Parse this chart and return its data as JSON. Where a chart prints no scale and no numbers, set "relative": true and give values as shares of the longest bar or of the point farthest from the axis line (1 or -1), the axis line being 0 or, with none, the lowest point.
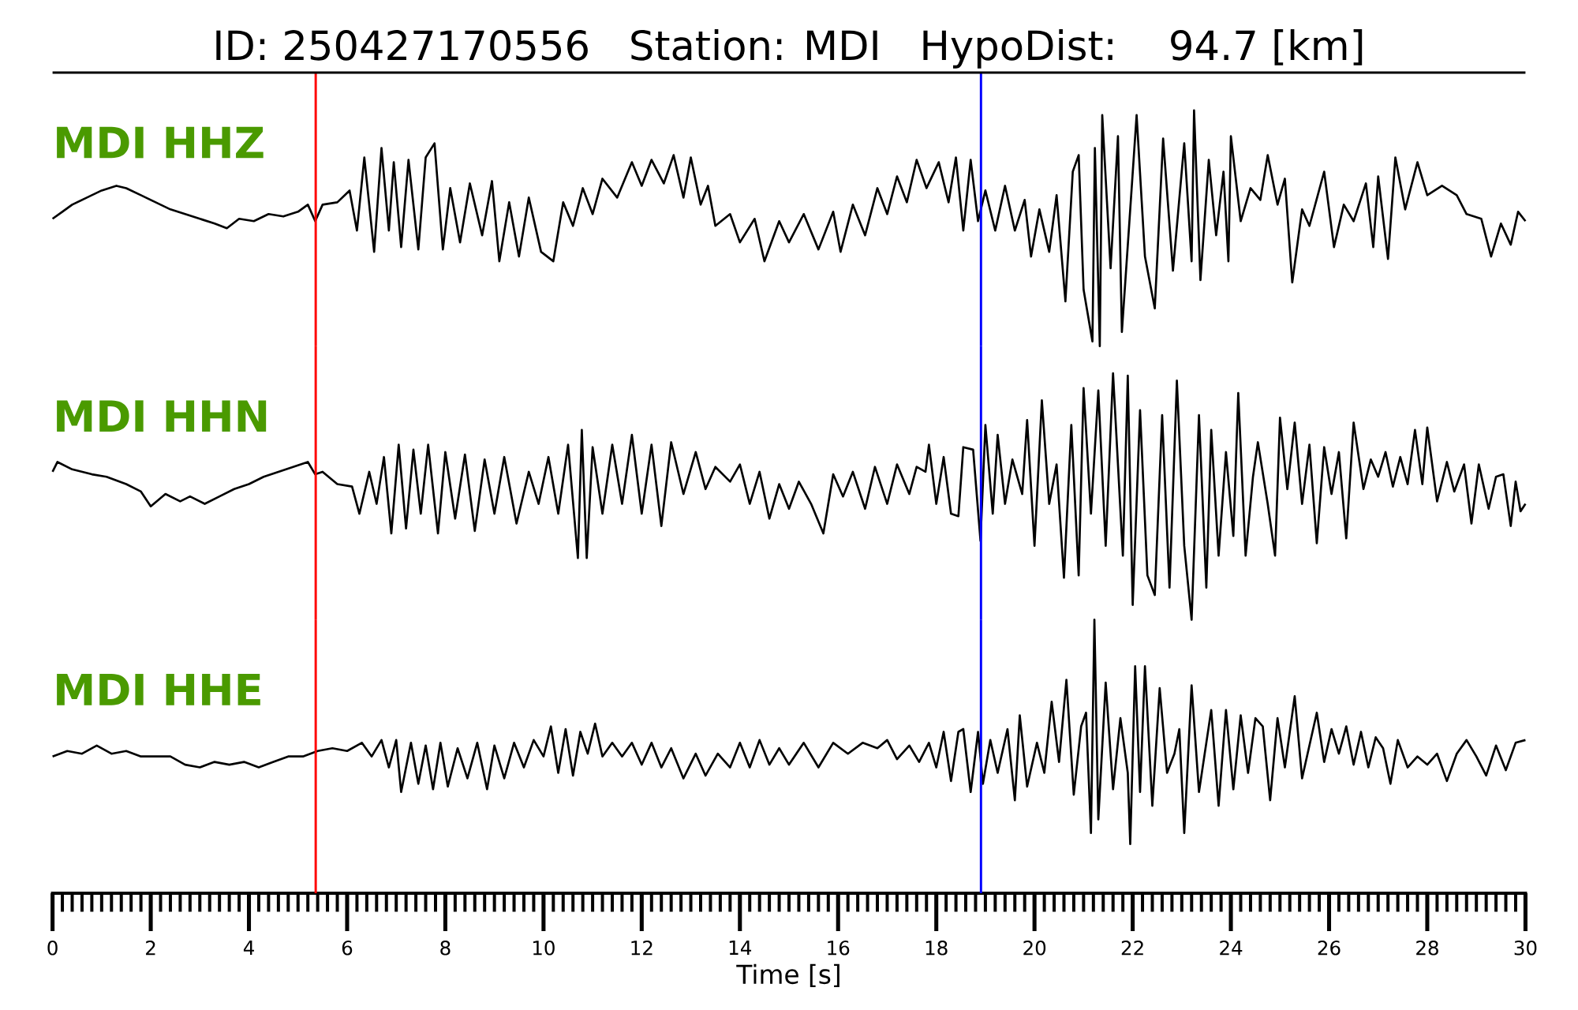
{
  "chart_data": [
    {
      "type": "line",
      "title": "ID: 250427170556   Station: MDI   HypoDist:    94.7 [km]",
      "relative": true,
      "xlim": [
        0,
        30
      ],
      "tick_labels": false,
      "ref_lines": [
        {
          "axis": "x",
          "value": 5.36,
          "color": "#ff0000"
        },
        {
          "axis": "x",
          "value": 18.91,
          "color": "#0000ff"
        }
      ],
      "x": [
        0,
        0.2,
        0.4,
        0.7,
        1,
        1.3,
        1.5,
        1.8,
        2.1,
        2.4,
        2.7,
        3,
        3.3,
        3.55,
        3.8,
        4.1,
        4.4,
        4.7,
        5,
        5.2,
        5.35,
        5.5,
        5.8,
        6.05,
        6.2,
        6.35,
        6.55,
        6.7,
        6.85,
        6.95,
        7.1,
        7.25,
        7.45,
        7.6,
        7.78,
        7.95,
        8.1,
        8.3,
        8.5,
        8.75,
        8.95,
        9.1,
        9.3,
        9.5,
        9.7,
        9.95,
        10.2,
        10.4,
        10.6,
        10.8,
        11,
        11.2,
        11.5,
        11.8,
        12,
        12.2,
        12.45,
        12.65,
        12.85,
        13,
        13.2,
        13.35,
        13.5,
        13.8,
        14,
        14.3,
        14.5,
        14.8,
        15,
        15.3,
        15.6,
        15.9,
        16.05,
        16.3,
        16.55,
        16.8,
        17,
        17.2,
        17.4,
        17.6,
        17.8,
        18.05,
        18.25,
        18.4,
        18.55,
        18.7,
        18.85,
        19,
        19.2,
        19.4,
        19.6,
        19.8,
        19.93,
        20.1,
        20.3,
        20.45,
        20.63,
        20.78,
        20.9,
        21,
        21.18,
        21.23,
        21.33,
        21.38,
        21.55,
        21.7,
        21.78,
        21.95,
        22.08,
        22.25,
        22.45,
        22.62,
        22.82,
        23.05,
        23.2,
        23.25,
        23.38,
        23.55,
        23.7,
        23.85,
        23.95,
        24,
        24.2,
        24.4,
        24.6,
        24.75,
        24.95,
        25.1,
        25.25,
        25.45,
        25.6,
        25.9,
        26.1,
        26.3,
        26.5,
        26.75,
        26.9,
        27,
        27.2,
        27.35,
        27.55,
        27.8,
        28,
        28.3,
        28.6,
        28.8,
        29.1,
        29.3,
        29.5,
        29.7,
        29.85,
        30
      ],
      "series": [
        {
          "name": "MDI HHZ",
          "color": "#000000",
          "values": [
            0.54,
            0.57,
            0.6,
            0.63,
            0.66,
            0.68,
            0.67,
            0.64,
            0.61,
            0.58,
            0.56,
            0.54,
            0.52,
            0.5,
            0.54,
            0.53,
            0.56,
            0.55,
            0.57,
            0.6,
            0.53,
            0.6,
            0.61,
            0.66,
            0.49,
            0.8,
            0.4,
            0.84,
            0.49,
            0.78,
            0.42,
            0.79,
            0.41,
            0.8,
            0.86,
            0.41,
            0.67,
            0.44,
            0.69,
            0.47,
            0.7,
            0.36,
            0.61,
            0.38,
            0.63,
            0.4,
            0.36,
            0.61,
            0.51,
            0.67,
            0.56,
            0.71,
            0.63,
            0.78,
            0.68,
            0.79,
            0.69,
            0.81,
            0.63,
            0.8,
            0.6,
            0.68,
            0.51,
            0.56,
            0.44,
            0.54,
            0.36,
            0.53,
            0.44,
            0.56,
            0.41,
            0.57,
            0.4,
            0.6,
            0.47,
            0.67,
            0.56,
            0.72,
            0.61,
            0.79,
            0.67,
            0.78,
            0.61,
            0.8,
            0.49,
            0.79,
            0.53,
            0.66,
            0.49,
            0.68,
            0.49,
            0.62,
            0.38,
            0.58,
            0.4,
            0.64,
            0.19,
            0.74,
            0.81,
            0.24,
            0.02,
            0.84,
            0,
            0.98,
            0.33,
            0.89,
            0.06,
            0.58,
            0.98,
            0.38,
            0.16,
            0.88,
            0.32,
            0.86,
            0.36,
            1,
            0.28,
            0.79,
            0.47,
            0.74,
            0.36,
            0.89,
            0.53,
            0.67,
            0.62,
            0.81,
            0.6,
            0.71,
            0.27,
            0.58,
            0.51,
            0.74,
            0.42,
            0.6,
            0.53,
            0.69,
            0.42,
            0.72,
            0.37,
            0.8,
            0.58,
            0.78,
            0.64,
            0.68,
            0.64,
            0.56,
            0.54,
            0.38,
            0.52,
            0.43,
            0.57,
            0.53
          ]
        }
      ]
    },
    {
      "type": "line",
      "relative": true,
      "xlim": [
        0,
        30
      ],
      "tick_labels": false,
      "ref_lines": [
        {
          "axis": "x",
          "value": 5.36,
          "color": "#ff0000"
        },
        {
          "axis": "x",
          "value": 18.91,
          "color": "#0000ff"
        }
      ],
      "x": [
        0,
        0.1,
        0.4,
        0.8,
        1.1,
        1.5,
        1.8,
        2,
        2.3,
        2.6,
        2.8,
        3.1,
        3.4,
        3.7,
        4,
        4.3,
        4.6,
        4.9,
        5.2,
        5.35,
        5.5,
        5.8,
        6.1,
        6.25,
        6.45,
        6.6,
        6.75,
        6.9,
        7.05,
        7.2,
        7.35,
        7.5,
        7.65,
        7.85,
        8,
        8.2,
        8.4,
        8.6,
        8.8,
        9,
        9.2,
        9.45,
        9.7,
        9.9,
        10.1,
        10.3,
        10.5,
        10.7,
        10.78,
        10.88,
        11,
        11.2,
        11.4,
        11.6,
        11.8,
        12,
        12.2,
        12.4,
        12.6,
        12.85,
        13.1,
        13.3,
        13.5,
        13.8,
        14,
        14.2,
        14.4,
        14.6,
        14.8,
        15,
        15.2,
        15.45,
        15.7,
        15.9,
        16.1,
        16.3,
        16.55,
        16.75,
        17,
        17.2,
        17.45,
        17.6,
        17.78,
        17.85,
        18,
        18.15,
        18.3,
        18.45,
        18.55,
        18.75,
        18.9,
        19,
        19.15,
        19.25,
        19.4,
        19.55,
        19.75,
        19.85,
        20,
        20.15,
        20.3,
        20.45,
        20.6,
        20.75,
        20.9,
        21,
        21.15,
        21.3,
        21.45,
        21.6,
        21.8,
        21.9,
        22,
        22.15,
        22.3,
        22.45,
        22.6,
        22.75,
        22.9,
        23.05,
        23.2,
        23.35,
        23.5,
        23.6,
        23.75,
        23.9,
        24.05,
        24.15,
        24.3,
        24.45,
        24.55,
        24.75,
        24.9,
        25,
        25.15,
        25.3,
        25.45,
        25.6,
        25.75,
        25.9,
        26.05,
        26.2,
        26.35,
        26.5,
        26.7,
        26.85,
        27,
        27.15,
        27.3,
        27.45,
        27.6,
        27.75,
        27.9,
        28,
        28.2,
        28.4,
        28.55,
        28.75,
        28.9,
        29.05,
        29.25,
        29.4,
        29.55,
        29.7,
        29.8,
        29.9,
        30
      ],
      "series": [
        {
          "name": "MDI HHN",
          "color": "#000000",
          "values": [
            0.6,
            0.64,
            0.61,
            0.59,
            0.58,
            0.55,
            0.52,
            0.46,
            0.51,
            0.48,
            0.5,
            0.47,
            0.5,
            0.53,
            0.55,
            0.58,
            0.6,
            0.62,
            0.64,
            0.59,
            0.6,
            0.55,
            0.54,
            0.43,
            0.6,
            0.47,
            0.66,
            0.35,
            0.71,
            0.37,
            0.69,
            0.43,
            0.71,
            0.35,
            0.68,
            0.41,
            0.67,
            0.36,
            0.65,
            0.43,
            0.66,
            0.39,
            0.6,
            0.47,
            0.66,
            0.43,
            0.71,
            0.25,
            0.77,
            0.25,
            0.7,
            0.43,
            0.71,
            0.47,
            0.75,
            0.43,
            0.71,
            0.38,
            0.72,
            0.51,
            0.68,
            0.53,
            0.62,
            0.56,
            0.63,
            0.47,
            0.6,
            0.41,
            0.55,
            0.45,
            0.56,
            0.47,
            0.35,
            0.59,
            0.5,
            0.6,
            0.45,
            0.62,
            0.47,
            0.63,
            0.51,
            0.62,
            0.6,
            0.71,
            0.47,
            0.66,
            0.43,
            0.42,
            0.7,
            0.69,
            0.32,
            0.79,
            0.43,
            0.75,
            0.47,
            0.65,
            0.51,
            0.81,
            0.3,
            0.89,
            0.47,
            0.63,
            0.17,
            0.79,
            0.18,
            0.94,
            0.43,
            0.93,
            0.3,
            1,
            0.26,
            0.99,
            0.06,
            0.85,
            0.18,
            0.1,
            0.83,
            0.13,
            0.97,
            0.3,
            0,
            0.83,
            0.13,
            0.77,
            0.26,
            0.68,
            0.34,
            0.92,
            0.26,
            0.58,
            0.72,
            0.47,
            0.26,
            0.82,
            0.53,
            0.8,
            0.47,
            0.71,
            0.31,
            0.7,
            0.51,
            0.68,
            0.33,
            0.8,
            0.53,
            0.65,
            0.58,
            0.68,
            0.54,
            0.66,
            0.55,
            0.77,
            0.55,
            0.78,
            0.48,
            0.64,
            0.52,
            0.63,
            0.39,
            0.63,
            0.45,
            0.58,
            0.59,
            0.38,
            0.56,
            0.44,
            0.47
          ]
        }
      ]
    },
    {
      "type": "line",
      "relative": true,
      "xlim": [
        0,
        30
      ],
      "tick_labels": "x",
      "xlabel": "Time [s]",
      "ref_lines": [
        {
          "axis": "x",
          "value": 5.36,
          "color": "#ff0000"
        },
        {
          "axis": "x",
          "value": 18.91,
          "color": "#0000ff"
        }
      ],
      "xticks": [
        0,
        {
          "value": 0.2,
          "label": null
        },
        {
          "value": 0.4,
          "label": null
        },
        {
          "value": 0.6,
          "label": null
        },
        {
          "value": 0.8,
          "label": null
        },
        {
          "value": 1,
          "label": null
        },
        {
          "value": 1.2,
          "label": null
        },
        {
          "value": 1.4,
          "label": null
        },
        {
          "value": 1.6,
          "label": null
        },
        {
          "value": 1.8,
          "label": null
        },
        2,
        {
          "value": 2.2,
          "label": null
        },
        {
          "value": 2.4,
          "label": null
        },
        {
          "value": 2.6,
          "label": null
        },
        {
          "value": 2.8,
          "label": null
        },
        {
          "value": 3,
          "label": null
        },
        {
          "value": 3.2,
          "label": null
        },
        {
          "value": 3.4,
          "label": null
        },
        {
          "value": 3.6,
          "label": null
        },
        {
          "value": 3.8,
          "label": null
        },
        4,
        {
          "value": 4.2,
          "label": null
        },
        {
          "value": 4.4,
          "label": null
        },
        {
          "value": 4.6,
          "label": null
        },
        {
          "value": 4.8,
          "label": null
        },
        {
          "value": 5,
          "label": null
        },
        {
          "value": 5.2,
          "label": null
        },
        {
          "value": 5.4,
          "label": null
        },
        {
          "value": 5.6,
          "label": null
        },
        {
          "value": 5.8,
          "label": null
        },
        6,
        {
          "value": 6.2,
          "label": null
        },
        {
          "value": 6.4,
          "label": null
        },
        {
          "value": 6.6,
          "label": null
        },
        {
          "value": 6.8,
          "label": null
        },
        {
          "value": 7,
          "label": null
        },
        {
          "value": 7.2,
          "label": null
        },
        {
          "value": 7.4,
          "label": null
        },
        {
          "value": 7.6,
          "label": null
        },
        {
          "value": 7.8,
          "label": null
        },
        8,
        {
          "value": 8.2,
          "label": null
        },
        {
          "value": 8.4,
          "label": null
        },
        {
          "value": 8.6,
          "label": null
        },
        {
          "value": 8.8,
          "label": null
        },
        {
          "value": 9,
          "label": null
        },
        {
          "value": 9.2,
          "label": null
        },
        {
          "value": 9.4,
          "label": null
        },
        {
          "value": 9.6,
          "label": null
        },
        {
          "value": 9.8,
          "label": null
        },
        10,
        {
          "value": 10.2,
          "label": null
        },
        {
          "value": 10.4,
          "label": null
        },
        {
          "value": 10.6,
          "label": null
        },
        {
          "value": 10.8,
          "label": null
        },
        {
          "value": 11,
          "label": null
        },
        {
          "value": 11.2,
          "label": null
        },
        {
          "value": 11.4,
          "label": null
        },
        {
          "value": 11.6,
          "label": null
        },
        {
          "value": 11.8,
          "label": null
        },
        12,
        {
          "value": 12.2,
          "label": null
        },
        {
          "value": 12.4,
          "label": null
        },
        {
          "value": 12.6,
          "label": null
        },
        {
          "value": 12.8,
          "label": null
        },
        {
          "value": 13,
          "label": null
        },
        {
          "value": 13.2,
          "label": null
        },
        {
          "value": 13.4,
          "label": null
        },
        {
          "value": 13.6,
          "label": null
        },
        {
          "value": 13.8,
          "label": null
        },
        14,
        {
          "value": 14.2,
          "label": null
        },
        {
          "value": 14.4,
          "label": null
        },
        {
          "value": 14.6,
          "label": null
        },
        {
          "value": 14.8,
          "label": null
        },
        {
          "value": 15,
          "label": null
        },
        {
          "value": 15.2,
          "label": null
        },
        {
          "value": 15.4,
          "label": null
        },
        {
          "value": 15.6,
          "label": null
        },
        {
          "value": 15.8,
          "label": null
        },
        16,
        {
          "value": 16.2,
          "label": null
        },
        {
          "value": 16.4,
          "label": null
        },
        {
          "value": 16.6,
          "label": null
        },
        {
          "value": 16.8,
          "label": null
        },
        {
          "value": 17,
          "label": null
        },
        {
          "value": 17.2,
          "label": null
        },
        {
          "value": 17.4,
          "label": null
        },
        {
          "value": 17.6,
          "label": null
        },
        {
          "value": 17.8,
          "label": null
        },
        18,
        {
          "value": 18.2,
          "label": null
        },
        {
          "value": 18.4,
          "label": null
        },
        {
          "value": 18.6,
          "label": null
        },
        {
          "value": 18.8,
          "label": null
        },
        {
          "value": 19,
          "label": null
        },
        {
          "value": 19.2,
          "label": null
        },
        {
          "value": 19.4,
          "label": null
        },
        {
          "value": 19.6,
          "label": null
        },
        {
          "value": 19.8,
          "label": null
        },
        20,
        {
          "value": 20.2,
          "label": null
        },
        {
          "value": 20.4,
          "label": null
        },
        {
          "value": 20.6,
          "label": null
        },
        {
          "value": 20.8,
          "label": null
        },
        {
          "value": 21,
          "label": null
        },
        {
          "value": 21.2,
          "label": null
        },
        {
          "value": 21.4,
          "label": null
        },
        {
          "value": 21.6,
          "label": null
        },
        {
          "value": 21.8,
          "label": null
        },
        22,
        {
          "value": 22.2,
          "label": null
        },
        {
          "value": 22.4,
          "label": null
        },
        {
          "value": 22.6,
          "label": null
        },
        {
          "value": 22.8,
          "label": null
        },
        {
          "value": 23,
          "label": null
        },
        {
          "value": 23.2,
          "label": null
        },
        {
          "value": 23.4,
          "label": null
        },
        {
          "value": 23.6,
          "label": null
        },
        {
          "value": 23.8,
          "label": null
        },
        24,
        {
          "value": 24.2,
          "label": null
        },
        {
          "value": 24.4,
          "label": null
        },
        {
          "value": 24.6,
          "label": null
        },
        {
          "value": 24.8,
          "label": null
        },
        {
          "value": 25,
          "label": null
        },
        {
          "value": 25.2,
          "label": null
        },
        {
          "value": 25.4,
          "label": null
        },
        {
          "value": 25.6,
          "label": null
        },
        {
          "value": 25.8,
          "label": null
        },
        26,
        {
          "value": 26.2,
          "label": null
        },
        {
          "value": 26.4,
          "label": null
        },
        {
          "value": 26.6,
          "label": null
        },
        {
          "value": 26.8,
          "label": null
        },
        {
          "value": 27,
          "label": null
        },
        {
          "value": 27.2,
          "label": null
        },
        {
          "value": 27.4,
          "label": null
        },
        {
          "value": 27.6,
          "label": null
        },
        {
          "value": 27.8,
          "label": null
        },
        28,
        {
          "value": 28.2,
          "label": null
        },
        {
          "value": 28.4,
          "label": null
        },
        {
          "value": 28.6,
          "label": null
        },
        {
          "value": 28.8,
          "label": null
        },
        {
          "value": 29,
          "label": null
        },
        {
          "value": 29.2,
          "label": null
        },
        {
          "value": 29.4,
          "label": null
        },
        {
          "value": 29.6,
          "label": null
        },
        {
          "value": 29.8,
          "label": null
        },
        30
      ],
      "x": [
        0,
        0.3,
        0.6,
        0.9,
        1.2,
        1.5,
        1.8,
        2.1,
        2.4,
        2.7,
        3,
        3.3,
        3.6,
        3.9,
        4.2,
        4.5,
        4.8,
        5.1,
        5.4,
        5.7,
        6,
        6.3,
        6.5,
        6.7,
        6.85,
        7,
        7.1,
        7.3,
        7.45,
        7.6,
        7.75,
        7.9,
        8.05,
        8.25,
        8.45,
        8.65,
        8.85,
        9,
        9.2,
        9.4,
        9.6,
        9.8,
        10,
        10.15,
        10.3,
        10.45,
        10.6,
        10.75,
        10.9,
        11.05,
        11.2,
        11.4,
        11.6,
        11.8,
        12,
        12.2,
        12.4,
        12.6,
        12.85,
        13.1,
        13.3,
        13.55,
        13.8,
        14,
        14.2,
        14.4,
        14.6,
        14.8,
        15,
        15.3,
        15.6,
        15.9,
        16.2,
        16.5,
        16.8,
        17,
        17.2,
        17.45,
        17.65,
        17.85,
        18,
        18.15,
        18.3,
        18.45,
        18.55,
        18.7,
        18.85,
        18.95,
        19.1,
        19.25,
        19.45,
        19.6,
        19.7,
        19.85,
        20.05,
        20.2,
        20.35,
        20.5,
        20.65,
        20.8,
        20.95,
        21.05,
        21.15,
        21.22,
        21.3,
        21.45,
        21.6,
        21.75,
        21.9,
        21.95,
        22.05,
        22.15,
        22.25,
        22.4,
        22.55,
        22.7,
        22.85,
        22.95,
        23.05,
        23.2,
        23.35,
        23.5,
        23.6,
        23.75,
        23.9,
        24.05,
        24.2,
        24.35,
        24.5,
        24.65,
        24.8,
        24.95,
        25.1,
        25.3,
        25.45,
        25.6,
        25.75,
        25.9,
        26.05,
        26.2,
        26.35,
        26.5,
        26.65,
        26.8,
        26.95,
        27.1,
        27.25,
        27.4,
        27.6,
        27.8,
        28,
        28.2,
        28.4,
        28.6,
        28.8,
        29,
        29.2,
        29.4,
        29.6,
        29.8,
        30
      ],
      "series": [
        {
          "name": "MDI HHE",
          "color": "#000000",
          "values": [
            0.5,
            0.52,
            0.51,
            0.54,
            0.51,
            0.52,
            0.5,
            0.5,
            0.5,
            0.47,
            0.46,
            0.48,
            0.47,
            0.48,
            0.46,
            0.48,
            0.5,
            0.5,
            0.52,
            0.53,
            0.52,
            0.55,
            0.5,
            0.56,
            0.46,
            0.56,
            0.37,
            0.55,
            0.4,
            0.54,
            0.38,
            0.55,
            0.39,
            0.53,
            0.42,
            0.55,
            0.38,
            0.54,
            0.42,
            0.55,
            0.46,
            0.56,
            0.5,
            0.61,
            0.44,
            0.6,
            0.43,
            0.59,
            0.51,
            0.62,
            0.5,
            0.55,
            0.5,
            0.55,
            0.47,
            0.55,
            0.46,
            0.53,
            0.42,
            0.51,
            0.43,
            0.51,
            0.46,
            0.55,
            0.46,
            0.56,
            0.47,
            0.53,
            0.47,
            0.55,
            0.46,
            0.55,
            0.51,
            0.55,
            0.53,
            0.56,
            0.49,
            0.54,
            0.48,
            0.55,
            0.46,
            0.59,
            0.41,
            0.59,
            0.6,
            0.37,
            0.59,
            0.4,
            0.56,
            0.44,
            0.6,
            0.34,
            0.65,
            0.39,
            0.55,
            0.44,
            0.7,
            0.48,
            0.78,
            0.36,
            0.61,
            0.66,
            0.22,
            1,
            0.27,
            0.77,
            0.38,
            0.64,
            0.44,
            0.18,
            0.83,
            0.37,
            0.83,
            0.32,
            0.75,
            0.44,
            0.51,
            0.6,
            0.22,
            0.76,
            0.37,
            0.55,
            0.67,
            0.32,
            0.67,
            0.38,
            0.65,
            0.44,
            0.64,
            0.61,
            0.34,
            0.64,
            0.46,
            0.72,
            0.42,
            0.54,
            0.66,
            0.48,
            0.6,
            0.51,
            0.61,
            0.47,
            0.59,
            0.46,
            0.57,
            0.53,
            0.4,
            0.56,
            0.46,
            0.5,
            0.47,
            0.51,
            0.41,
            0.51,
            0.56,
            0.5,
            0.43,
            0.54,
            0.45,
            0.55,
            0.56
          ]
        }
      ]
    }
  ]
}
